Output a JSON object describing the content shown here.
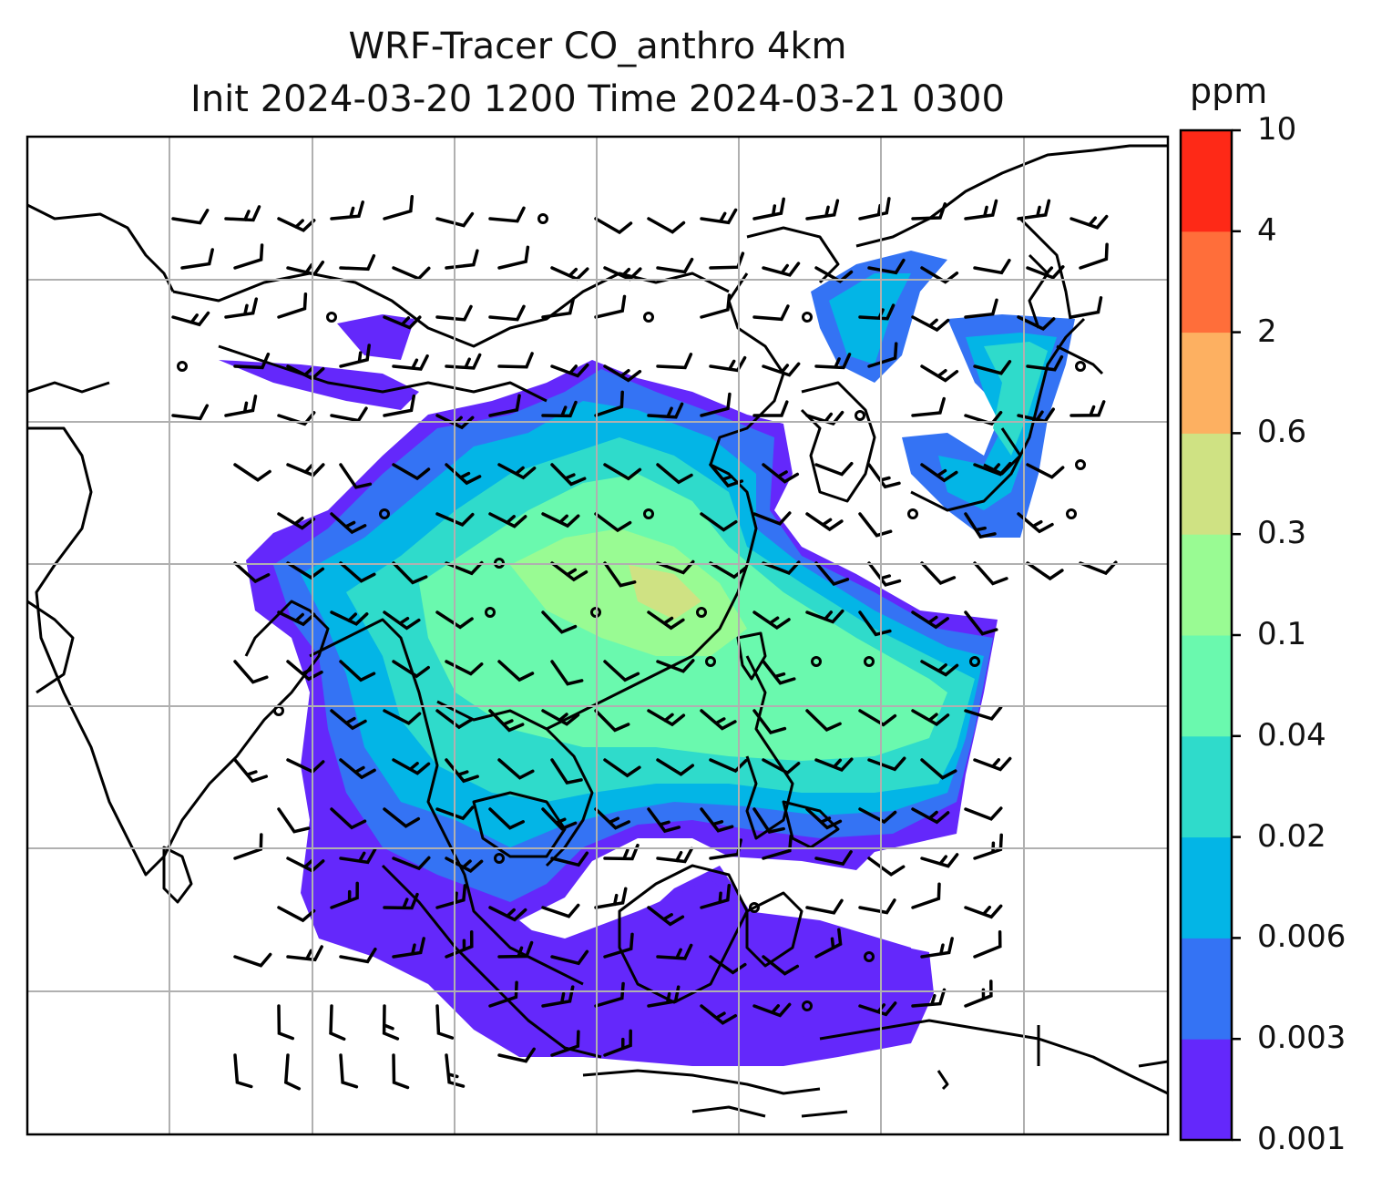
{
  "title": {
    "line1": "WRF-Tracer CO_anthro 4km",
    "line2": "Init 2024-03-20 1200 Time 2024-03-21 0300"
  },
  "colorbar": {
    "unit": "ppm",
    "levels": [
      "0.001",
      "0.003",
      "0.006",
      "0.02",
      "0.04",
      "0.1",
      "0.3",
      "0.6",
      "2",
      "4",
      "10"
    ],
    "colors": [
      "#6428fb",
      "#3473f4",
      "#03b5e6",
      "#2fdbcb",
      "#6af9ae",
      "#99fb93",
      "#cfe283",
      "#fdb061",
      "#ff6e3a",
      "#fe2917"
    ]
  },
  "map": {
    "field": "CO_anthro",
    "resolution": "4km",
    "gridlines": true,
    "features": [
      "coastlines",
      "country-borders",
      "wind-barbs"
    ]
  }
}
